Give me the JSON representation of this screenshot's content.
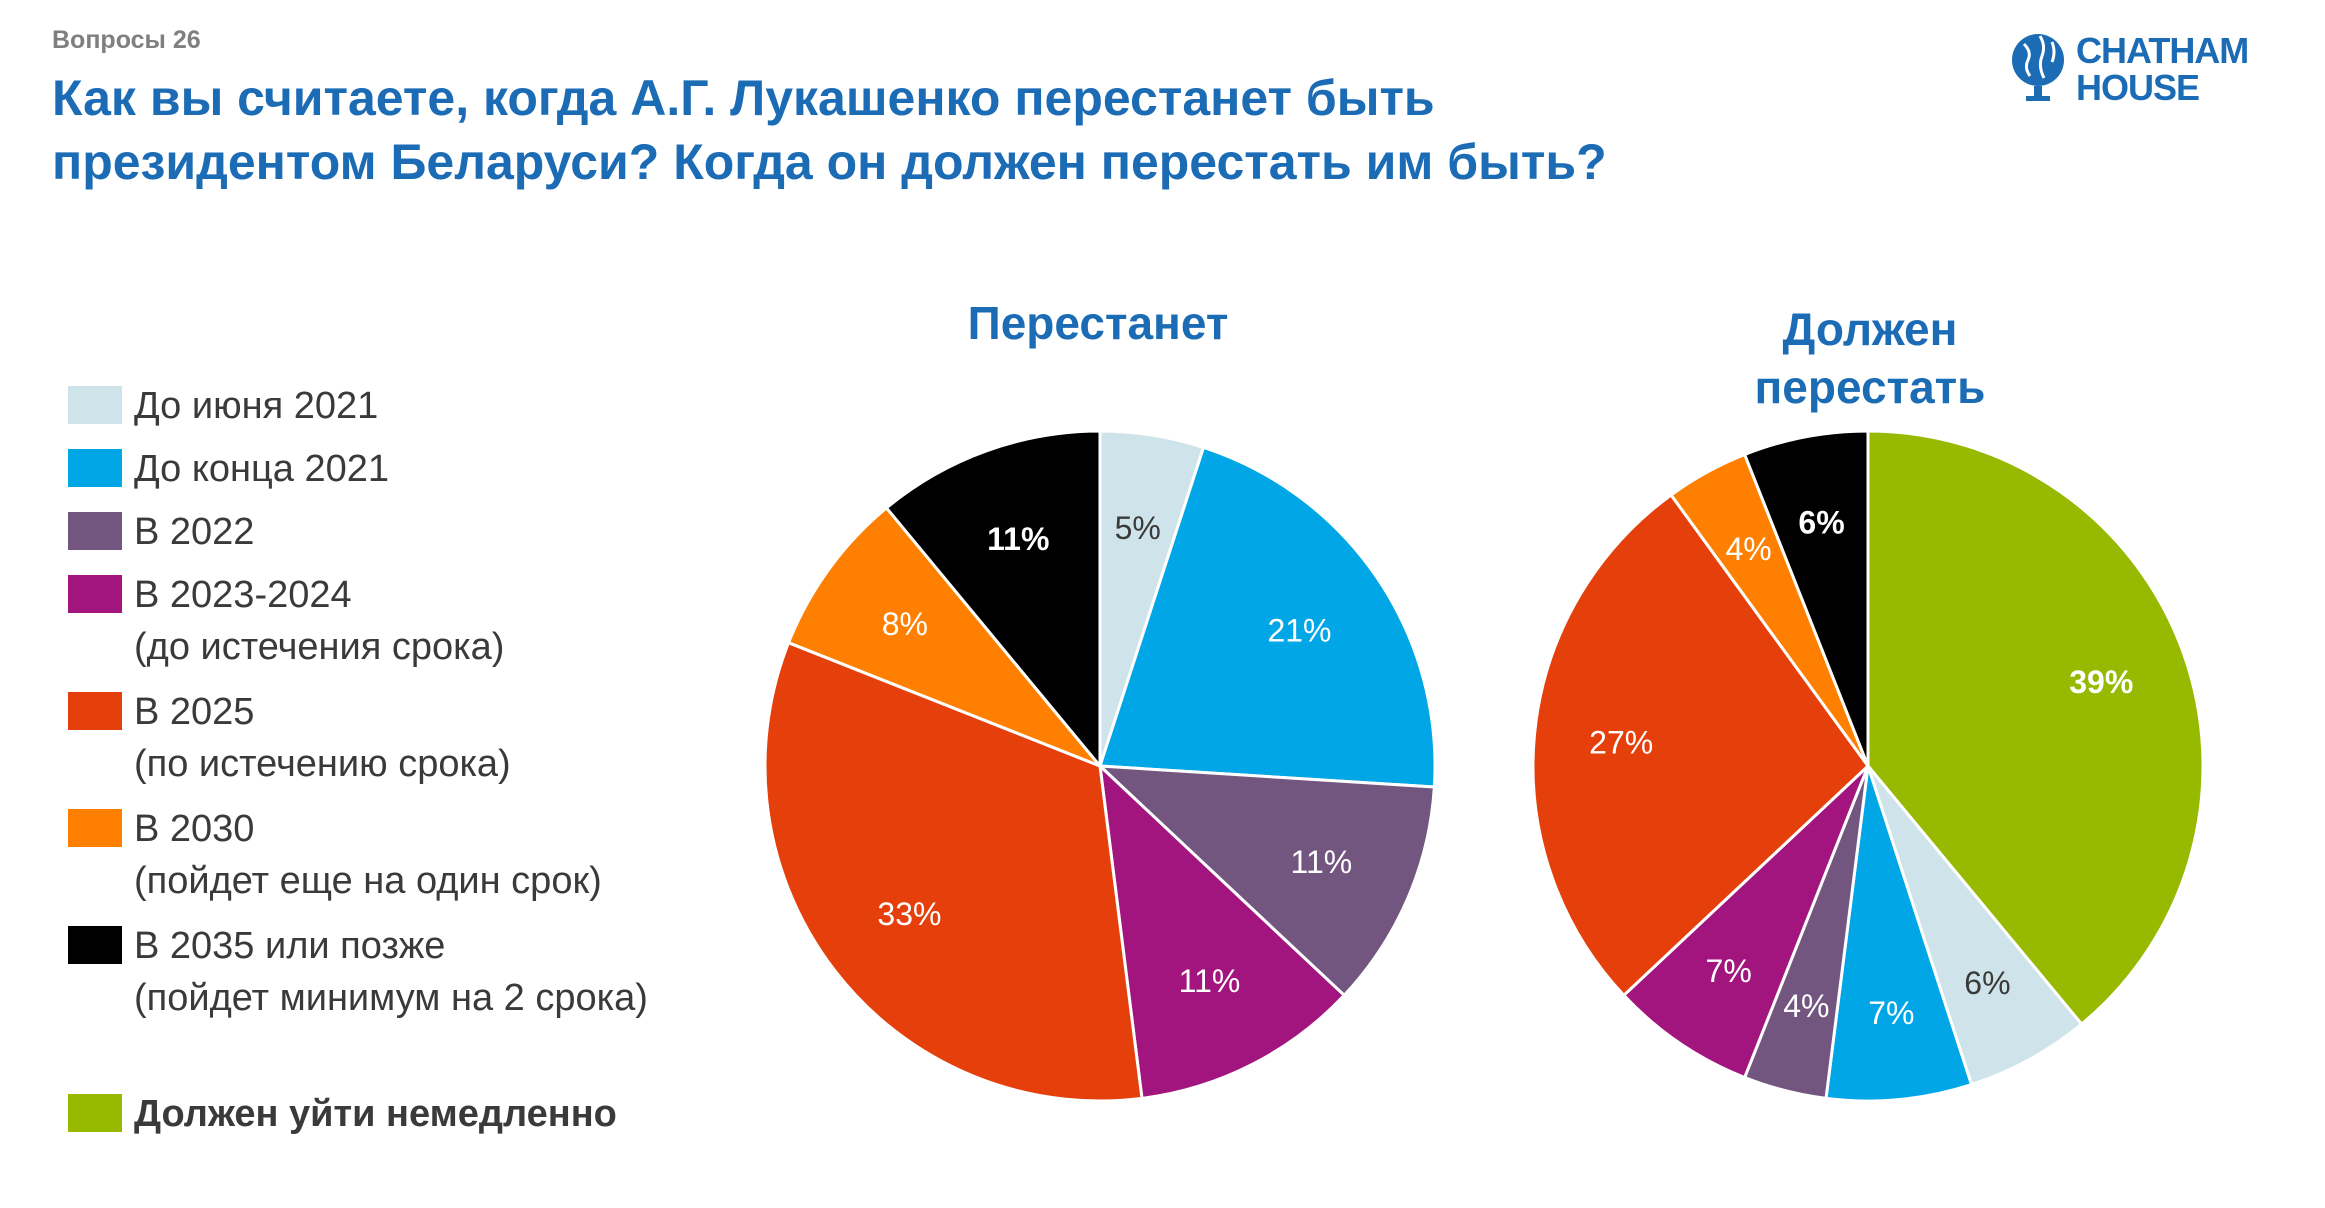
{
  "header": {
    "kicker": "Вопросы 26",
    "title_line1": "Как вы считаете, когда А.Г. Лукашенко перестанет быть",
    "title_line2": "президентом Беларуси? Когда он должен перестать им быть?"
  },
  "logo": {
    "line1": "CHATHAM",
    "line2": "HOUSE",
    "icon": "globe-icon",
    "color": "#1c6bb5"
  },
  "legend": [
    {
      "line1": "До июня 2021",
      "line2": "",
      "color": "#cfe4ea",
      "bold": false
    },
    {
      "line1": "До конца 2021",
      "line2": "",
      "color": "#00a6e6",
      "bold": false
    },
    {
      "line1": "В 2022",
      "line2": "",
      "color": "#72567f",
      "bold": false
    },
    {
      "line1": "В 2023-2024",
      "line2": "(до истечения срока)",
      "color": "#a3157e",
      "bold": false
    },
    {
      "line1": "В 2025",
      "line2": "(по истечению срока)",
      "color": "#e5400b",
      "bold": false
    },
    {
      "line1": "В 2030",
      "line2": "(пойдет еще на один срок)",
      "color": "#ff8000",
      "bold": false
    },
    {
      "line1": "В 2035 или позже",
      "line2": "(пойдет минимум на 2 срока)",
      "color": "#000000",
      "bold": false
    },
    {
      "line1": "Должен уйти немедленно",
      "line2": "",
      "color": "#97b900",
      "bold": true
    }
  ],
  "chart_data": [
    {
      "type": "pie",
      "title_line1": "Перестанет",
      "title_line2": "",
      "categories": [
        "До июня 2021",
        "До конца 2021",
        "В 2022",
        "В 2023-2024",
        "В 2025",
        "В 2030",
        "В 2035 или позже"
      ],
      "values": [
        5,
        21,
        11,
        11,
        33,
        8,
        11
      ],
      "labels": [
        "5%",
        "21%",
        "11%",
        "11%",
        "33%",
        "8%",
        "11%"
      ],
      "colors": [
        "#cfe4ea",
        "#00a6e6",
        "#72567f",
        "#a3157e",
        "#e5400b",
        "#ff8000",
        "#000000"
      ],
      "label_colors": [
        "#3a3a3a",
        "#ffffff",
        "#ffffff",
        "#ffffff",
        "#ffffff",
        "#ffffff",
        "#ffffff"
      ],
      "label_bold": [
        false,
        false,
        false,
        false,
        false,
        false,
        true
      ]
    },
    {
      "type": "pie",
      "title_line1": "Должен",
      "title_line2": "перестать",
      "categories": [
        "Должен уйти немедленно",
        "До июня 2021",
        "До конца 2021",
        "В 2022",
        "В 2023-2024",
        "В 2025",
        "В 2030",
        "В 2035 или позже"
      ],
      "values": [
        39,
        6,
        7,
        4,
        7,
        27,
        4,
        6
      ],
      "labels": [
        "39%",
        "6%",
        "7%",
        "4%",
        "7%",
        "27%",
        "4%",
        "6%"
      ],
      "colors": [
        "#97b900",
        "#cfe4ea",
        "#00a6e6",
        "#72567f",
        "#a3157e",
        "#e5400b",
        "#ff8000",
        "#000000"
      ],
      "label_colors": [
        "#ffffff",
        "#3a3a3a",
        "#ffffff",
        "#ffffff",
        "#ffffff",
        "#ffffff",
        "#ffffff",
        "#ffffff"
      ],
      "label_bold": [
        true,
        false,
        false,
        false,
        false,
        false,
        false,
        true
      ]
    }
  ]
}
